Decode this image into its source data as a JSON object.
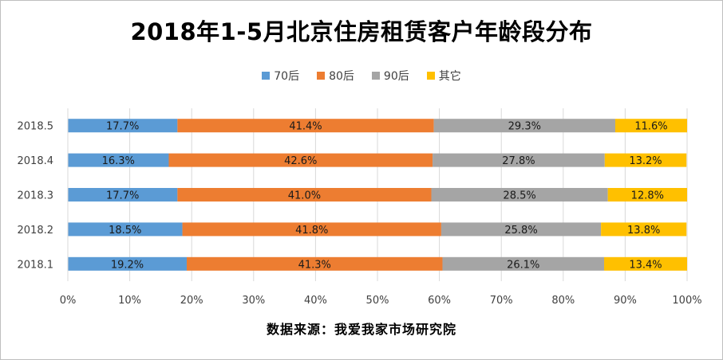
{
  "title": "2018年1-5月北京住房租赁客户年龄段分布",
  "source": "数据来源：我爱我家市场研究院",
  "colors": {
    "70后": "#5b9bd5",
    "80后": "#ed7d31",
    "90后": "#a5a5a5",
    "其它": "#ffc000"
  },
  "chart_data": {
    "type": "bar",
    "orientation": "horizontal",
    "stacked": "percent",
    "categories": [
      "2018.1",
      "2018.2",
      "2018.3",
      "2018.4",
      "2018.5"
    ],
    "series": [
      {
        "name": "70后",
        "values": [
          19.2,
          18.5,
          17.7,
          16.3,
          17.7
        ],
        "labels": [
          "19.2%",
          "18.5%",
          "17.7%",
          "16.3%",
          "17.7%"
        ]
      },
      {
        "name": "80后",
        "values": [
          41.3,
          41.8,
          41.0,
          42.6,
          41.4
        ],
        "labels": [
          "41.3%",
          "41.8%",
          "41.0%",
          "42.6%",
          "41.4%"
        ]
      },
      {
        "name": "90后",
        "values": [
          26.1,
          25.8,
          28.5,
          27.8,
          29.3
        ],
        "labels": [
          "26.1%",
          "25.8%",
          "28.5%",
          "27.8%",
          "29.3%"
        ]
      },
      {
        "name": "其它",
        "values": [
          13.4,
          13.8,
          12.8,
          13.2,
          11.6
        ],
        "labels": [
          "13.4%",
          "13.8%",
          "12.8%",
          "13.2%",
          "11.6%"
        ]
      }
    ],
    "xlim": [
      0,
      100
    ],
    "xticks": [
      "0%",
      "10%",
      "20%",
      "30%",
      "40%",
      "50%",
      "60%",
      "70%",
      "80%",
      "90%",
      "100%"
    ],
    "grid": true,
    "legend_position": "top"
  }
}
